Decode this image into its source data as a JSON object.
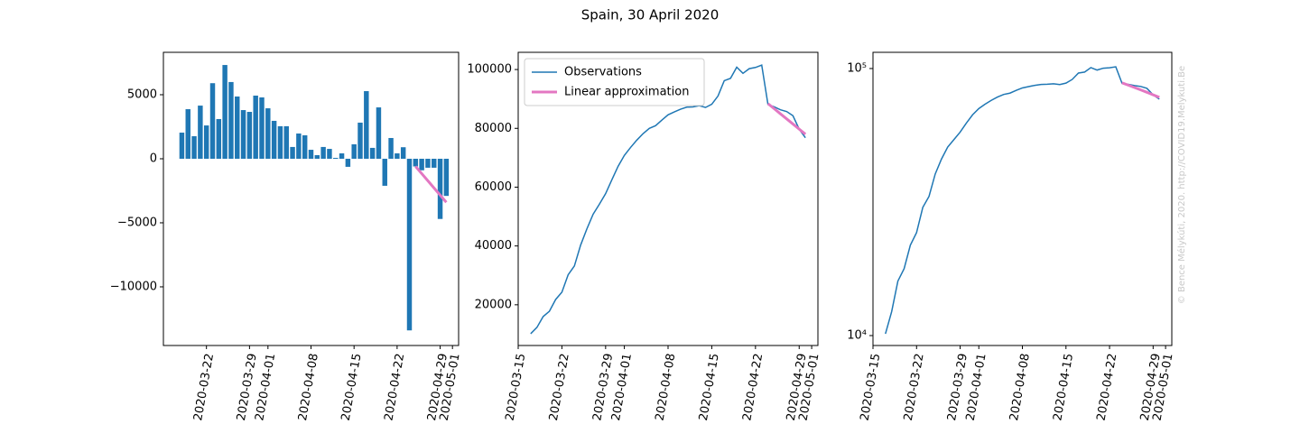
{
  "title": "Spain, 30 April 2020",
  "credit": "© Bence Mélykúti, 2020. http://COVID19.Melykuti.Be",
  "chart_data": [
    {
      "type": "bar",
      "x": [
        "2020-03-18",
        "2020-03-19",
        "2020-03-20",
        "2020-03-21",
        "2020-03-22",
        "2020-03-23",
        "2020-03-24",
        "2020-03-25",
        "2020-03-26",
        "2020-03-27",
        "2020-03-28",
        "2020-03-29",
        "2020-03-30",
        "2020-03-31",
        "2020-04-01",
        "2020-04-02",
        "2020-04-03",
        "2020-04-04",
        "2020-04-05",
        "2020-04-06",
        "2020-04-07",
        "2020-04-08",
        "2020-04-09",
        "2020-04-10",
        "2020-04-11",
        "2020-04-12",
        "2020-04-13",
        "2020-04-14",
        "2020-04-15",
        "2020-04-16",
        "2020-04-17",
        "2020-04-18",
        "2020-04-19",
        "2020-04-20",
        "2020-04-21",
        "2020-04-22",
        "2020-04-23",
        "2020-04-24",
        "2020-04-25",
        "2020-04-26",
        "2020-04-27",
        "2020-04-28",
        "2020-04-29",
        "2020-04-30"
      ],
      "series": [
        {
          "color": "#1f77b4",
          "values": [
            2040,
            3870,
            1760,
            4150,
            2600,
            5900,
            3100,
            7320,
            5990,
            4860,
            3800,
            3660,
            4930,
            4790,
            3940,
            2960,
            2540,
            2540,
            920,
            1970,
            1830,
            700,
            280,
            920,
            770,
            70,
            420,
            -630,
            1130,
            2820,
            5280,
            850,
            4010,
            -2110,
            1620,
            420,
            900,
            -13400,
            -600,
            -900,
            -700,
            -700,
            -4700,
            -2900
          ]
        },
        {
          "color": "#e377c2",
          "x": [
            "2020-04-25",
            "2020-04-26",
            "2020-04-27",
            "2020-04-28",
            "2020-04-29",
            "2020-04-30"
          ],
          "values": [
            -600,
            -1160,
            -1720,
            -2280,
            -2840,
            -3400
          ]
        }
      ],
      "xlim": [
        "2020-03-15",
        "2020-05-02"
      ],
      "xticks": [
        "2020-03-22",
        "2020-03-29",
        "2020-04-01",
        "2020-04-08",
        "2020-04-15",
        "2020-04-22",
        "2020-04-29",
        "2020-05-01"
      ],
      "ylim": [
        -14580,
        8310
      ],
      "yticks": [
        {
          "value": -10000,
          "label": "−10000"
        },
        {
          "value": -5000,
          "label": "−5000"
        },
        0,
        5000
      ]
    },
    {
      "type": "line",
      "x": [
        "2020-03-17",
        "2020-03-18",
        "2020-03-19",
        "2020-03-20",
        "2020-03-21",
        "2020-03-22",
        "2020-03-23",
        "2020-03-24",
        "2020-03-25",
        "2020-03-26",
        "2020-03-27",
        "2020-03-28",
        "2020-03-29",
        "2020-03-30",
        "2020-03-31",
        "2020-04-01",
        "2020-04-02",
        "2020-04-03",
        "2020-04-04",
        "2020-04-05",
        "2020-04-06",
        "2020-04-07",
        "2020-04-08",
        "2020-04-09",
        "2020-04-10",
        "2020-04-11",
        "2020-04-12",
        "2020-04-13",
        "2020-04-14",
        "2020-04-15",
        "2020-04-16",
        "2020-04-17",
        "2020-04-18",
        "2020-04-19",
        "2020-04-20",
        "2020-04-21",
        "2020-04-22",
        "2020-04-23",
        "2020-04-24",
        "2020-04-25",
        "2020-04-26",
        "2020-04-27",
        "2020-04-28",
        "2020-04-29",
        "2020-04-30"
      ],
      "series": [
        {
          "name": "Observations",
          "color": "#1f77b4",
          "values": [
            10150,
            12300,
            16000,
            17800,
            21800,
            24300,
            30200,
            33200,
            40300,
            45800,
            50800,
            54200,
            57800,
            62500,
            67100,
            70800,
            73500,
            76000,
            78200,
            80000,
            80900,
            82800,
            84600,
            85600,
            86500,
            87200,
            87300,
            87700,
            87100,
            88200,
            91000,
            96200,
            97000,
            100800,
            98700,
            100300,
            100700,
            101500,
            88100,
            87300,
            86300,
            85700,
            84300,
            79700,
            76800
          ]
        },
        {
          "name": "Linear approximation",
          "color": "#e377c2",
          "x": [
            "2020-04-24",
            "2020-04-25",
            "2020-04-26",
            "2020-04-27",
            "2020-04-28",
            "2020-04-29",
            "2020-04-30"
          ],
          "values": [
            88400,
            86670,
            84930,
            83200,
            81470,
            79730,
            78000
          ]
        }
      ],
      "legend": "upper left",
      "xlim": [
        "2020-03-15",
        "2020-05-02"
      ],
      "xticks": [
        "2020-03-15",
        "2020-03-22",
        "2020-03-29",
        "2020-04-01",
        "2020-04-08",
        "2020-04-15",
        "2020-04-22",
        "2020-04-29",
        "2020-05-01"
      ],
      "ylim": [
        6150,
        105850
      ],
      "yticks": [
        20000,
        40000,
        60000,
        80000,
        100000
      ]
    },
    {
      "type": "line",
      "log_scale": true,
      "x": [
        "2020-03-17",
        "2020-03-18",
        "2020-03-19",
        "2020-03-20",
        "2020-03-21",
        "2020-03-22",
        "2020-03-23",
        "2020-03-24",
        "2020-03-25",
        "2020-03-26",
        "2020-03-27",
        "2020-03-28",
        "2020-03-29",
        "2020-03-30",
        "2020-03-31",
        "2020-04-01",
        "2020-04-02",
        "2020-04-03",
        "2020-04-04",
        "2020-04-05",
        "2020-04-06",
        "2020-04-07",
        "2020-04-08",
        "2020-04-09",
        "2020-04-10",
        "2020-04-11",
        "2020-04-12",
        "2020-04-13",
        "2020-04-14",
        "2020-04-15",
        "2020-04-16",
        "2020-04-17",
        "2020-04-18",
        "2020-04-19",
        "2020-04-20",
        "2020-04-21",
        "2020-04-22",
        "2020-04-23",
        "2020-04-24",
        "2020-04-25",
        "2020-04-26",
        "2020-04-27",
        "2020-04-28",
        "2020-04-29",
        "2020-04-30"
      ],
      "series": [
        {
          "color": "#1f77b4",
          "values": [
            10150,
            12300,
            16000,
            17800,
            21800,
            24300,
            30200,
            33200,
            40300,
            45800,
            50800,
            54200,
            57800,
            62500,
            67100,
            70800,
            73500,
            76000,
            78200,
            80000,
            80900,
            82800,
            84600,
            85600,
            86500,
            87200,
            87300,
            87700,
            87100,
            88200,
            91000,
            96200,
            97000,
            100800,
            98700,
            100300,
            100700,
            101500,
            88100,
            87300,
            86300,
            85700,
            84300,
            79700,
            76800
          ]
        },
        {
          "color": "#e377c2",
          "x": [
            "2020-04-24",
            "2020-04-25",
            "2020-04-26",
            "2020-04-27",
            "2020-04-28",
            "2020-04-29",
            "2020-04-30"
          ],
          "values": [
            88400,
            86670,
            84930,
            83200,
            81470,
            79730,
            78000
          ]
        }
      ],
      "xlim": [
        "2020-03-15",
        "2020-05-02"
      ],
      "xticks": [
        "2020-03-15",
        "2020-03-22",
        "2020-03-29",
        "2020-04-01",
        "2020-04-08",
        "2020-04-15",
        "2020-04-22",
        "2020-04-29",
        "2020-05-01"
      ],
      "ylim": [
        9180,
        115000
      ],
      "yticks": [
        {
          "value": 10000,
          "label": "10⁴"
        },
        {
          "value": 100000,
          "label": "10⁵"
        }
      ]
    }
  ]
}
